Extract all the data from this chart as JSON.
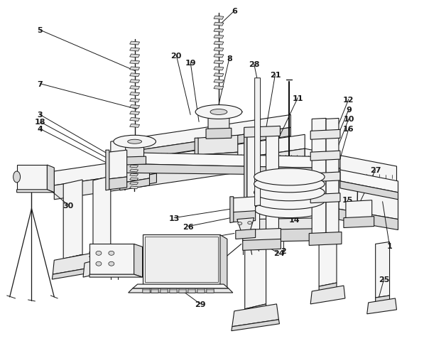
{
  "bg_color": "#ffffff",
  "lc": "#1a1a1a",
  "lw": 0.8,
  "fw": "#f5f5f5",
  "fw2": "#e8e8e8",
  "fw3": "#d8d8d8",
  "figw": 5.97,
  "figh": 4.81
}
